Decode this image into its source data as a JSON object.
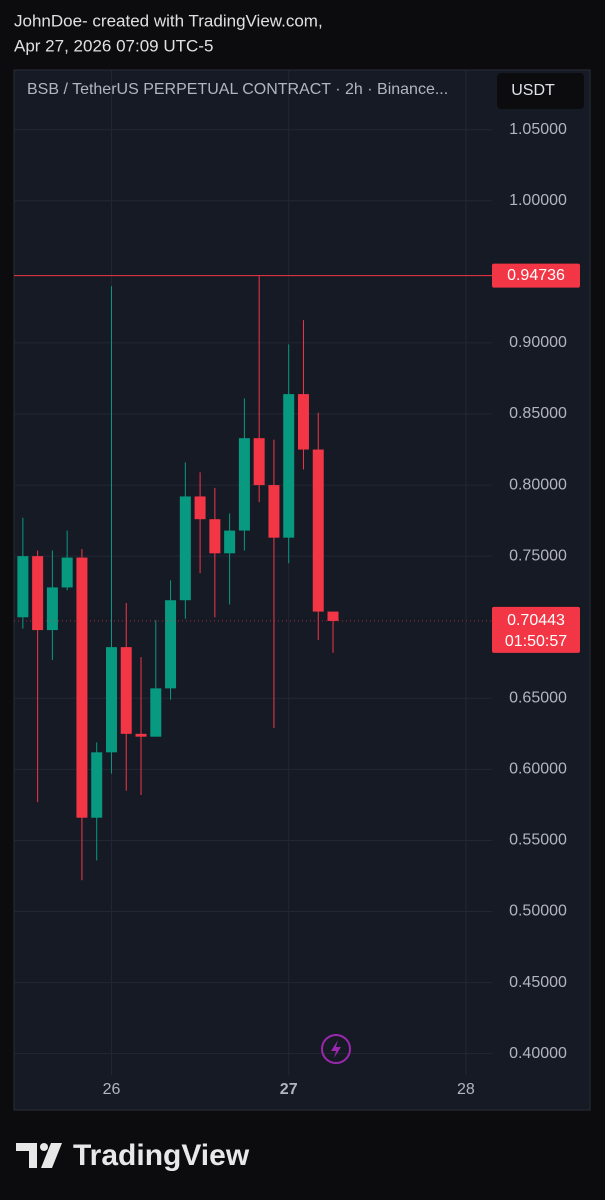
{
  "header": {
    "line1": "JohnDoe- created with TradingView.com,",
    "line2": "Apr 27, 2026 07:09 UTC-5"
  },
  "chart_data": {
    "type": "candlestick",
    "title": "BSB / TetherUS PERPETUAL CONTRACT · 2h · Binance...",
    "currency": "USDT",
    "x": [
      25.5,
      25.5833,
      25.6667,
      25.75,
      25.8333,
      25.9167,
      26,
      26.0833,
      26.1667,
      26.25,
      26.3333,
      26.4167,
      26.5,
      26.5833,
      26.6667,
      26.75,
      26.8333,
      26.9167,
      27,
      27.0833,
      27.1667,
      27.25
    ],
    "open": [
      0.707,
      0.75,
      0.698,
      0.728,
      0.749,
      0.566,
      0.612,
      0.686,
      0.625,
      0.623,
      0.657,
      0.719,
      0.792,
      0.776,
      0.752,
      0.768,
      0.833,
      0.8,
      0.763,
      0.864,
      0.825,
      0.711
    ],
    "high": [
      0.777,
      0.754,
      0.754,
      0.768,
      0.755,
      0.619,
      0.94,
      0.717,
      0.679,
      0.705,
      0.733,
      0.816,
      0.809,
      0.798,
      0.78,
      0.861,
      0.947,
      0.832,
      0.899,
      0.916,
      0.851,
      0.711
    ],
    "low": [
      0.699,
      0.577,
      0.677,
      0.726,
      0.522,
      0.536,
      0.597,
      0.585,
      0.582,
      0.623,
      0.649,
      0.706,
      0.738,
      0.707,
      0.716,
      0.754,
      0.788,
      0.629,
      0.745,
      0.811,
      0.691,
      0.682
    ],
    "close": [
      0.75,
      0.698,
      0.728,
      0.749,
      0.566,
      0.612,
      0.686,
      0.625,
      0.623,
      0.657,
      0.719,
      0.792,
      0.776,
      0.752,
      0.768,
      0.833,
      0.8,
      0.763,
      0.864,
      0.825,
      0.711,
      0.70443
    ],
    "up_color": "#089981",
    "down_color": "#f23645",
    "xlim": [
      25.45,
      28.7
    ],
    "xticks": [
      26,
      27,
      28
    ],
    "ylim": [
      0.385,
      1.092
    ],
    "yticks": [
      {
        "value": 0.4,
        "label": "0.40000"
      },
      {
        "value": 0.45,
        "label": "0.45000"
      },
      {
        "value": 0.5,
        "label": "0.50000"
      },
      {
        "value": 0.55,
        "label": "0.55000"
      },
      {
        "value": 0.6,
        "label": "0.60000"
      },
      {
        "value": 0.65,
        "label": "0.65000"
      },
      {
        "value": 0.75,
        "label": "0.75000"
      },
      {
        "value": 0.8,
        "label": "0.80000"
      },
      {
        "value": 0.85,
        "label": "0.85000"
      },
      {
        "value": 0.9,
        "label": "0.90000"
      },
      {
        "value": 1.0,
        "label": "1.00000"
      },
      {
        "value": 1.05,
        "label": "1.05000"
      }
    ],
    "grid": true,
    "high_line": 0.94736,
    "last_price": 0.70443,
    "countdown": "01:50:57"
  },
  "footer": {
    "brand": "TradingView"
  }
}
